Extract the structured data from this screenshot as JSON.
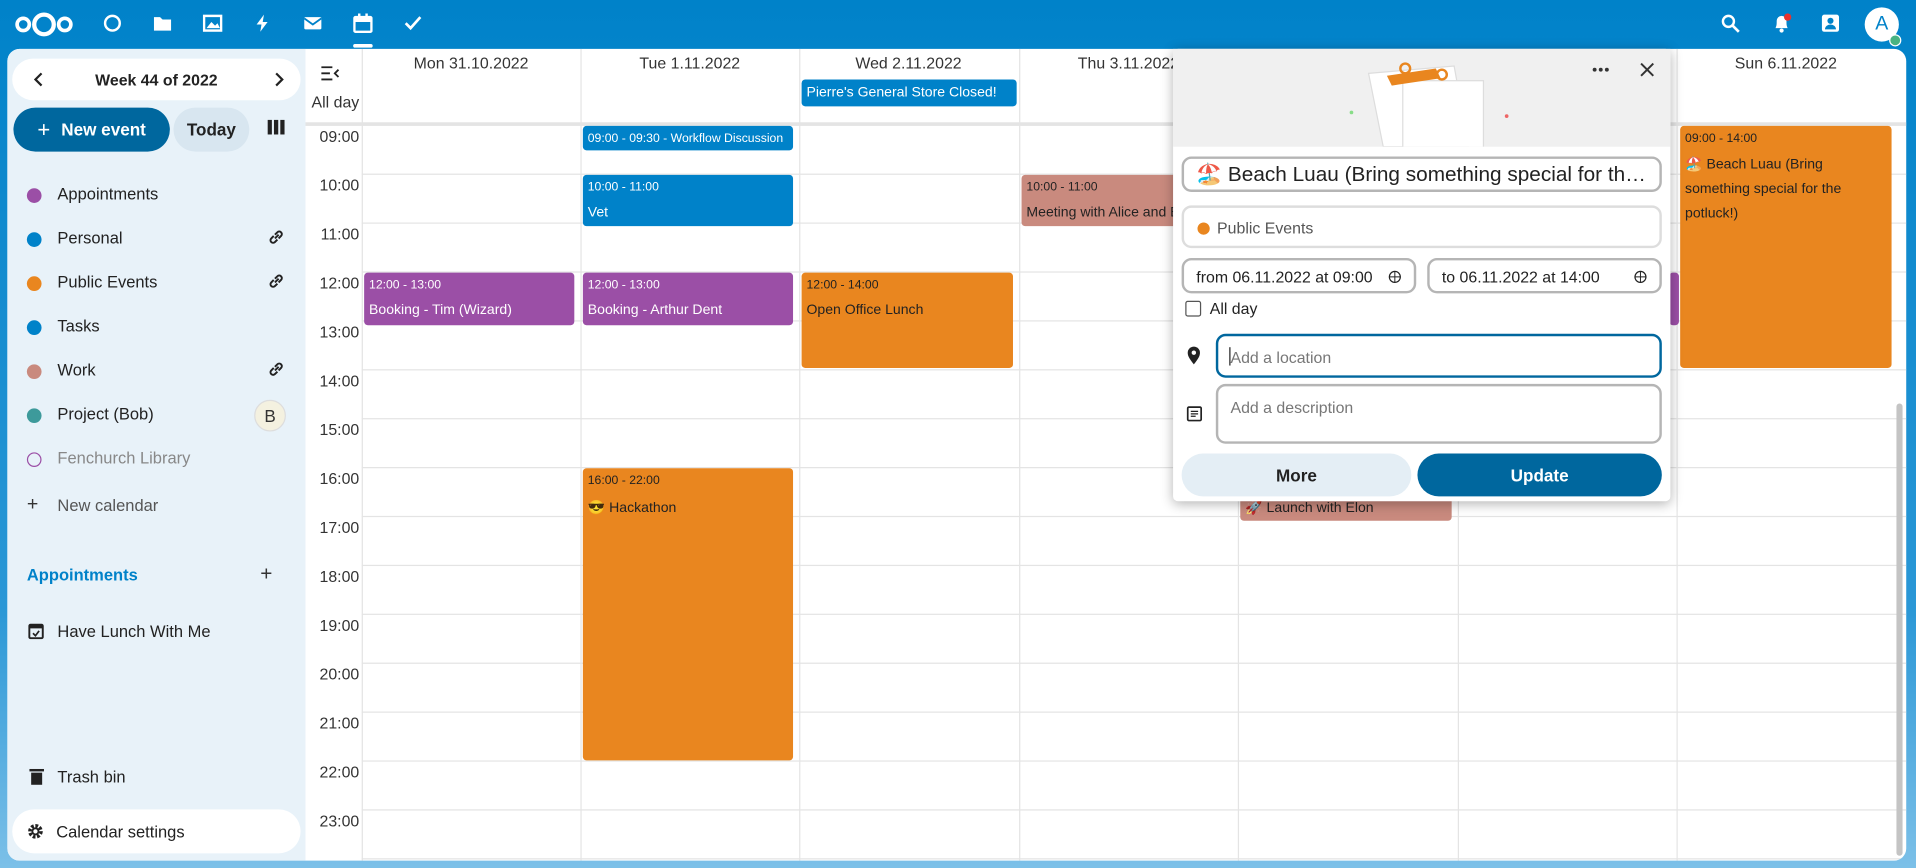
{
  "nav": {
    "avatar": "A"
  },
  "sidebar": {
    "week": "Week 44 of 2022",
    "new_event": "New event",
    "today": "Today",
    "calendars": [
      "Appointments",
      "Personal",
      "Public Events",
      "Tasks",
      "Work",
      "Project (Bob)",
      "Fenchurch Library"
    ],
    "project_badge": "B",
    "new_calendar": "New calendar",
    "appointments_header": "Appointments",
    "appointment_items": [
      "Have Lunch With Me"
    ],
    "trash": "Trash bin",
    "settings": "Calendar settings"
  },
  "calendar": {
    "all_day": "All day",
    "days": [
      "Mon 31.10.2022",
      "Tue 1.11.2022",
      "Wed 2.11.2022",
      "Thu 3.11.2022",
      "Sun 6.11.2022"
    ],
    "hours": [
      "09:00",
      "10:00",
      "11:00",
      "12:00",
      "13:00",
      "14:00",
      "15:00",
      "16:00",
      "17:00",
      "18:00",
      "19:00",
      "20:00",
      "21:00",
      "22:00",
      "23:00"
    ],
    "all_day_events": [
      "Pierre's General Store Closed!"
    ],
    "events": [
      {
        "time": "09:00 - 09:30 - Workflow Discussion"
      },
      {
        "time": "10:00 - 11:00",
        "title": "Vet"
      },
      {
        "time": "10:00 - 11:00",
        "title": "Meeting with Alice and B"
      },
      {
        "time": "12:00 - 13:00",
        "title": "Booking - Tim (Wizard)"
      },
      {
        "time": "12:00 - 13:00",
        "title": "Booking - Arthur Dent"
      },
      {
        "time": "12:00 - 14:00",
        "title": "Open Office Lunch"
      },
      {
        "time": "16:00 - 22:00",
        "title": "😎 Hackathon"
      },
      {
        "title": "🚀 Launch with Elon"
      },
      {
        "time": "09:00 - 14:00",
        "title": "🏖️ Beach Luau (Bring something special for the potluck!)"
      }
    ]
  },
  "popup": {
    "title": "🏖️ Beach Luau (Bring something special for th…",
    "calendar": "Public Events",
    "from": "from 06.11.2022 at 09:00",
    "to": "to 06.11.2022 at 14:00",
    "all_day": "All day",
    "location": "Add a location",
    "description": "Add a description",
    "more": "More",
    "update": "Update"
  }
}
